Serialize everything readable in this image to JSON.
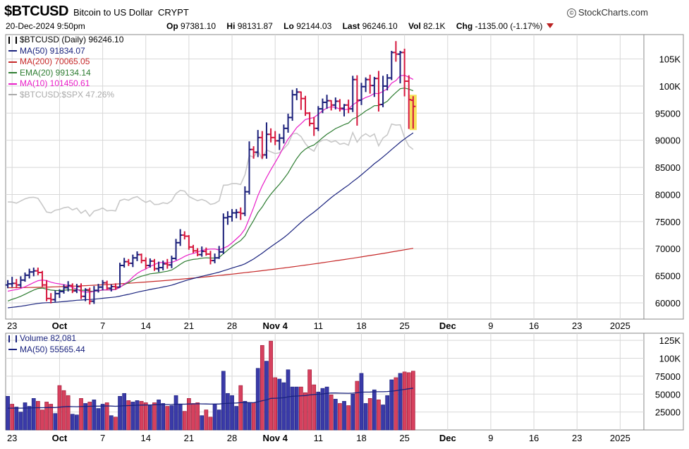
{
  "header": {
    "symbol": "$BTCUSD",
    "name": "Bitcoin to US Dollar",
    "exchange": "CRYPT",
    "brand": "StockCharts.com",
    "brand_mark": "©",
    "datetime": "20-Dec-2024 9:50pm",
    "quote": {
      "open_label": "Op",
      "open": "97381.10",
      "high_label": "Hi",
      "high": "98131.87",
      "low_label": "Lo",
      "low": "92144.03",
      "last_label": "Last",
      "last": "96246.10",
      "vol_label": "Vol",
      "vol": "82.1K",
      "chg_label": "Chg",
      "chg": "-1135.00 (-1.17%)"
    }
  },
  "legend_price": [
    {
      "label": "$BTCUSD (Daily) 96246.10",
      "color": "#000000",
      "icon": "candle-icon"
    },
    {
      "label": "MA(50) 91834.07",
      "color": "#1a237e"
    },
    {
      "label": "MA(200) 70065.05",
      "color": "#c62828"
    },
    {
      "label": "EMA(20) 99134.14",
      "color": "#2e7d32"
    },
    {
      "label": "MA(10) 101450.61",
      "color": "#e91ec8"
    },
    {
      "label": "$BTCUSD:$SPX 47.26%",
      "color": "#aaaaaa"
    }
  ],
  "legend_volume": [
    {
      "label": "Volume 82,081",
      "color": "#1a237e",
      "icon": "bar-icon"
    },
    {
      "label": "MA(50) 55565.44",
      "color": "#1a237e"
    }
  ],
  "colors": {
    "up": "#1a1f7a",
    "down": "#d6173d",
    "vol_up": "#3a3aa8",
    "vol_down": "#d6415e",
    "highlight": "#f5e15a"
  },
  "chart_data": [
    {
      "type": "candlestick",
      "title": "$BTCUSD (Daily)",
      "yaxis_ticks": [
        60000,
        65000,
        70000,
        75000,
        80000,
        85000,
        90000,
        95000,
        100000,
        105000
      ],
      "ytick_labels": [
        "60000",
        "65000",
        "70000",
        "75000",
        "80000",
        "85000",
        "90000",
        "95000",
        "100K",
        "105K"
      ],
      "ylim": [
        57000,
        109500
      ],
      "x_tick_labels": [
        "23",
        "Oct",
        "7",
        "14",
        "21",
        "28",
        "Nov 4",
        "11",
        "18",
        "25",
        "Dec",
        "9",
        "16",
        "23",
        "2025"
      ],
      "x_tick_index": [
        1,
        12,
        22,
        32,
        42,
        52,
        62,
        72,
        82,
        92,
        102,
        112,
        122,
        132,
        142
      ],
      "n_days": 148,
      "last_index": 119,
      "series": [
        {
          "name": "$BTCUSD",
          "kind": "ohlc",
          "start_date": "2024-09-22",
          "close": [
            63500,
            63600,
            63300,
            64200,
            65100,
            65700,
            65900,
            65600,
            63300,
            60800,
            60600,
            61700,
            62100,
            62800,
            63200,
            62200,
            63000,
            61200,
            62400,
            60300,
            62300,
            62900,
            63700,
            62700,
            63000,
            62900,
            66900,
            67600,
            67300,
            68300,
            68900,
            67800,
            66900,
            67700,
            66300,
            66500,
            67200,
            67000,
            68200,
            71100,
            72500,
            72300,
            70300,
            69600,
            68900,
            69500,
            69000,
            67800,
            68300,
            69400,
            75700,
            75900,
            76600,
            76700,
            76500,
            80500,
            88300,
            87800,
            90500,
            87300,
            91100,
            90500,
            89900,
            90400,
            92200,
            94200,
            98400,
            98900,
            97700,
            95000,
            93100,
            92200,
            95800,
            97000,
            97300,
            96500,
            97200,
            95900,
            96500,
            95800,
            101200,
            97400,
            99900,
            101200,
            100100,
            101400,
            96600,
            100000,
            101500,
            106200,
            105900,
            106200,
            100900,
            97500,
            96246
          ],
          "open": [
            63300,
            63500,
            63600,
            63300,
            64200,
            65100,
            65700,
            65900,
            65600,
            63300,
            60800,
            60600,
            61700,
            62100,
            62800,
            63200,
            62200,
            63000,
            61200,
            62400,
            60300,
            62300,
            62900,
            63700,
            62700,
            63000,
            62900,
            66900,
            67600,
            67300,
            68300,
            68900,
            67800,
            66900,
            67700,
            66300,
            66500,
            67200,
            67000,
            68200,
            71100,
            72500,
            72300,
            70300,
            69600,
            68900,
            69500,
            69000,
            67800,
            68300,
            69400,
            75700,
            75900,
            76600,
            76700,
            76500,
            80500,
            88300,
            87800,
            90500,
            87300,
            91100,
            90500,
            89900,
            90400,
            92200,
            94200,
            98400,
            98900,
            97700,
            95000,
            93100,
            92200,
            95800,
            97000,
            97300,
            96500,
            97200,
            95900,
            96500,
            95800,
            101200,
            97400,
            99900,
            101200,
            100100,
            101400,
            96600,
            100000,
            101500,
            106200,
            105900,
            106200,
            100900,
            97381
          ],
          "high": [
            64200,
            64800,
            64400,
            64900,
            65600,
            66300,
            66500,
            66500,
            65900,
            64200,
            61800,
            62300,
            62500,
            63400,
            64000,
            63600,
            63500,
            63600,
            62700,
            62800,
            63100,
            63500,
            64200,
            64100,
            63400,
            63600,
            67400,
            68300,
            68100,
            68900,
            69500,
            69100,
            68400,
            68200,
            68100,
            67600,
            67800,
            68100,
            68700,
            71800,
            73600,
            73200,
            72500,
            70700,
            70100,
            70400,
            70200,
            69600,
            69100,
            70500,
            76500,
            76900,
            77300,
            77300,
            77600,
            81500,
            89800,
            88900,
            91900,
            91700,
            93300,
            92200,
            91700,
            91200,
            92900,
            94900,
            99300,
            99600,
            99000,
            98200,
            95200,
            94300,
            96300,
            97700,
            98400,
            97400,
            97900,
            97600,
            96700,
            97500,
            101900,
            102000,
            100600,
            101600,
            102100,
            101700,
            102800,
            101900,
            102200,
            106500,
            108300,
            106500,
            106900,
            102000,
            98132
          ],
          "low": [
            62700,
            62900,
            62700,
            62800,
            63900,
            64500,
            64900,
            65100,
            63000,
            60300,
            59900,
            60200,
            60900,
            61700,
            62100,
            61800,
            61800,
            60700,
            60300,
            59700,
            59800,
            61900,
            62300,
            62400,
            62100,
            62400,
            62800,
            66500,
            66800,
            66600,
            67700,
            67300,
            66300,
            66500,
            65900,
            65700,
            66000,
            66300,
            66400,
            67900,
            70500,
            71700,
            69800,
            69200,
            68600,
            68500,
            68700,
            67100,
            67300,
            68100,
            69000,
            74400,
            75000,
            75600,
            75300,
            76000,
            80000,
            86600,
            86900,
            86600,
            86600,
            89600,
            89100,
            88200,
            89400,
            91400,
            93600,
            97400,
            95600,
            94500,
            92600,
            90800,
            91700,
            95000,
            95800,
            95500,
            95700,
            95300,
            94400,
            95000,
            95200,
            92700,
            96500,
            98900,
            98600,
            98000,
            95300,
            96100,
            99200,
            101100,
            104500,
            100500,
            98100,
            92100,
            92144
          ]
        },
        {
          "name": "MA(50)",
          "kind": "line",
          "color": "#1a237e",
          "end_value": 91834.07
        },
        {
          "name": "MA(200)",
          "kind": "line",
          "color": "#c62828",
          "end_value": 70065.05
        },
        {
          "name": "EMA(20)",
          "kind": "line",
          "color": "#2e7d32",
          "end_value": 99134.14
        },
        {
          "name": "MA(10)",
          "kind": "line",
          "color": "#e91ec8",
          "end_value": 101450.61
        },
        {
          "name": "$BTCUSD:$SPX",
          "kind": "line",
          "color": "#aaaaaa",
          "end_value": 47.26
        }
      ]
    },
    {
      "type": "bar",
      "title": "Volume",
      "ytick_labels": [
        "25000",
        "50000",
        "75000",
        "100K",
        "125K"
      ],
      "yaxis_ticks": [
        25000,
        50000,
        75000,
        100000,
        125000
      ],
      "ylim": [
        0,
        135000
      ],
      "values": [
        47000,
        36000,
        32000,
        25000,
        38000,
        33000,
        44000,
        40000,
        28000,
        39000,
        36000,
        23000,
        62000,
        55000,
        48000,
        22000,
        21000,
        44000,
        37000,
        39000,
        42000,
        30000,
        36000,
        38000,
        20000,
        18000,
        47000,
        51000,
        41000,
        39000,
        41000,
        40000,
        38000,
        34000,
        38000,
        42000,
        37000,
        33000,
        34000,
        48000,
        36000,
        26000,
        44000,
        37000,
        38000,
        20000,
        28000,
        18000,
        36000,
        28000,
        82000,
        51000,
        48000,
        33000,
        62000,
        40000,
        38000,
        38000,
        86000,
        118000,
        96000,
        124000,
        73000,
        71000,
        66000,
        84000,
        60000,
        60000,
        60000,
        52000,
        84000,
        63000,
        53000,
        58000,
        60000,
        49000,
        43000,
        37000,
        40000,
        34000,
        50000,
        68000,
        79000,
        37000,
        44000,
        56000,
        42000,
        35000,
        48000,
        70000,
        73000,
        79000,
        81000,
        80000,
        82081
      ],
      "up": [
        1,
        0,
        1,
        1,
        1,
        1,
        1,
        0,
        0,
        0,
        0,
        1,
        0,
        0,
        0,
        1,
        1,
        0,
        1,
        0,
        1,
        1,
        1,
        0,
        1,
        0,
        1,
        1,
        0,
        1,
        1,
        0,
        0,
        1,
        0,
        1,
        1,
        0,
        1,
        1,
        1,
        0,
        0,
        0,
        0,
        1,
        0,
        0,
        1,
        1,
        1,
        1,
        1,
        1,
        0,
        1,
        1,
        0,
        1,
        0,
        1,
        0,
        0,
        1,
        1,
        1,
        1,
        1,
        0,
        0,
        0,
        0,
        1,
        1,
        1,
        0,
        1,
        0,
        1,
        0,
        1,
        0,
        1,
        1,
        0,
        1,
        0,
        1,
        1,
        1,
        0,
        1,
        0,
        0,
        0
      ],
      "ma50": 55565.44
    }
  ]
}
